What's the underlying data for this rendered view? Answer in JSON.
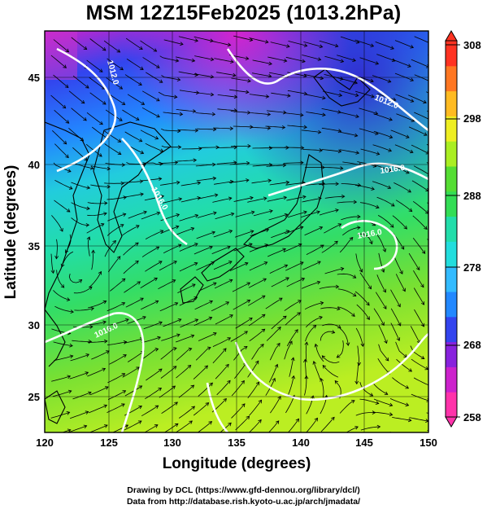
{
  "title": "MSM 12Z15Feb2025 (1013.2hPa)",
  "x_axis": {
    "label": "Longitude (degrees)",
    "ticks": [
      "120",
      "125",
      "130",
      "135",
      "140",
      "145",
      "150"
    ],
    "range": [
      120,
      150
    ]
  },
  "y_axis": {
    "label": "Latitude  (degrees)",
    "ticks": [
      "25",
      "30",
      "35",
      "40",
      "45"
    ],
    "range": [
      22.4,
      47.6
    ]
  },
  "colorbar": {
    "ticks": [
      "258",
      "268",
      "278",
      "288",
      "298",
      "308"
    ],
    "range": [
      258,
      308
    ],
    "colors": [
      "#ff33aa",
      "#cc22cc",
      "#8822dd",
      "#3344ee",
      "#2288ff",
      "#33bbff",
      "#22dddd",
      "#22ddaa",
      "#33dd55",
      "#55dd33",
      "#aaee22",
      "#eeee22",
      "#ffbb22",
      "#ff7722",
      "#ff3322"
    ]
  },
  "contour_labels": [
    "1012.0",
    "1012.0",
    "1016.0",
    "1016.0",
    "1016.0",
    "1016.0"
  ],
  "credits": {
    "line1": "Drawing by DCL (https://www.gfd-dennou.org/library/dcl/)",
    "line2": "Data from http://database.rish.kyoto-u.ac.jp/arch/jmadata/"
  }
}
